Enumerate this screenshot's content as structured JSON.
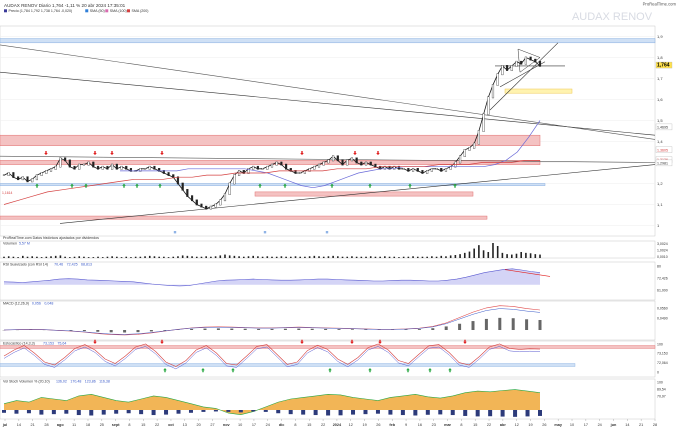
{
  "header": {
    "title": "AUDAX RENOV Diario  1,764  -1,11 % 20 abr 2024 17:35:01",
    "legend_items": [
      "Precio (1,784  1,792  1,738  1,764  -0,020)",
      "SMA (50)",
      "SMA (100)",
      "SMA (200)"
    ],
    "legend_colors": [
      "#3a3a9a",
      "#2f7fd8",
      "#d86bb0",
      "#d44040"
    ],
    "watermark": "AUDAX RENOV",
    "brand": "ProRealTime.com"
  },
  "colors": {
    "price": "#1a1a1a",
    "sma50": "#6a6ad8",
    "sma200": "#d44040",
    "resistance_zone": "#f4c2c2",
    "support_zone": "#cfe0f5",
    "last_price_bg": "#ffe14d",
    "up_arrow": "#2aa845",
    "down_arrow": "#e02020",
    "rsi_fill": "#b8b8f0",
    "macd_line": "#e04a4a",
    "volume_bar": "#222222",
    "vol_stoch_fill": "#f0a838",
    "vol_stoch_dark": "#2c3a7a"
  },
  "price_labels": {
    "last_price": "1,764",
    "level_a": "1,4695",
    "level_b": "1,3605",
    "level_c": "1,3136",
    "level_d": "1,2981",
    "level_left": "1,1614"
  },
  "footer_note": "ProRealTime.com  Datos históricos ajustados por dividendos",
  "panels": {
    "volume": {
      "label": "Volumen",
      "value": "5,57 M",
      "labels": [
        "3,0024",
        "1,0024",
        "0,0010"
      ]
    },
    "rsi": {
      "label": "RSI Suavizado (con RSI 14)",
      "values": [
        "70,46",
        "72,425",
        "68,813"
      ],
      "labels": [
        "80",
        "72,426",
        "61,000"
      ]
    },
    "macd": {
      "label": "MACD (12,26,9)",
      "values": [
        "0,056",
        "0,048"
      ],
      "labels": [
        "0,0560",
        "0,0490"
      ]
    },
    "stoch": {
      "label": "Estocástico (14,3,3)",
      "values": [
        "73,153",
        "75,64"
      ],
      "labels": [
        "100",
        "73,153",
        "72,064",
        "0"
      ]
    },
    "volstoch": {
      "label": "Vol Stoch Volumen % (20,10)",
      "values": [
        "136,02",
        "170,48",
        "123,86",
        "116,38"
      ],
      "labels": [
        "100",
        "89,54",
        "70,97"
      ]
    }
  },
  "chart_data": {
    "type": "line",
    "title": "AUDAX RENOV Diario",
    "y_ticks": [
      "1,9",
      "1,8",
      "1,7",
      "1,6",
      "1,5",
      "1,4",
      "1,3",
      "1,2",
      "1,1",
      "1"
    ],
    "ylim": [
      0.95,
      1.95
    ],
    "x_ticks": [
      "jul",
      "14",
      "21",
      "28",
      "ago",
      "11",
      "18",
      "25",
      "sept",
      "8",
      "15",
      "22",
      "oct",
      "13",
      "20",
      "27",
      "nov",
      "10",
      "17",
      "24",
      "dic",
      "8",
      "15",
      "22",
      "2024",
      "12",
      "19",
      "26",
      "feb",
      "9",
      "16",
      "23",
      "mar",
      "8",
      "15",
      "22",
      "abr",
      "12",
      "19",
      "26",
      "may",
      "10",
      "17",
      "24",
      "jun",
      "14",
      "21",
      "28"
    ],
    "series": [
      {
        "name": "Precio",
        "values": [
          1.24,
          1.25,
          1.23,
          1.22,
          1.23,
          1.21,
          1.22,
          1.24,
          1.25,
          1.26,
          1.27,
          1.28,
          1.32,
          1.31,
          1.28,
          1.27,
          1.29,
          1.29,
          1.3,
          1.28,
          1.27,
          1.28,
          1.27,
          1.29,
          1.27,
          1.28,
          1.27,
          1.26,
          1.26,
          1.27,
          1.27,
          1.28,
          1.27,
          1.26,
          1.25,
          1.24,
          1.23,
          1.2,
          1.17,
          1.14,
          1.12,
          1.1,
          1.09,
          1.08,
          1.09,
          1.1,
          1.12,
          1.15,
          1.2,
          1.24,
          1.26,
          1.25,
          1.27,
          1.28,
          1.27,
          1.27,
          1.28,
          1.29,
          1.3,
          1.29,
          1.27,
          1.26,
          1.25,
          1.25,
          1.26,
          1.27,
          1.28,
          1.29,
          1.3,
          1.31,
          1.33,
          1.31,
          1.29,
          1.31,
          1.32,
          1.3,
          1.29,
          1.3,
          1.29,
          1.28,
          1.27,
          1.28,
          1.27,
          1.28,
          1.27,
          1.27,
          1.26,
          1.27,
          1.26,
          1.25,
          1.26,
          1.27,
          1.27,
          1.26,
          1.27,
          1.28,
          1.3,
          1.33,
          1.36,
          1.37,
          1.39,
          1.45,
          1.53,
          1.61,
          1.67,
          1.72,
          1.76,
          1.74,
          1.76,
          1.78,
          1.77,
          1.8,
          1.79,
          1.78,
          1.76
        ]
      },
      {
        "name": "SMA (50)",
        "values": [
          1.26,
          1.26,
          1.26,
          1.26,
          1.26,
          1.26,
          1.27,
          1.27,
          1.27,
          1.27,
          1.27,
          1.27,
          1.26,
          1.25,
          1.23,
          1.21,
          1.19,
          1.18,
          1.19,
          1.21,
          1.23,
          1.25,
          1.26,
          1.27,
          1.27,
          1.28,
          1.28,
          1.28,
          1.28,
          1.28,
          1.28,
          1.28,
          1.28,
          1.29,
          1.31,
          1.35,
          1.42,
          1.5
        ]
      },
      {
        "name": "SMA (200)",
        "values": [
          1.1,
          1.12,
          1.14,
          1.16,
          1.17,
          1.18,
          1.19,
          1.2,
          1.21,
          1.22,
          1.22,
          1.22,
          1.23,
          1.23,
          1.24,
          1.24,
          1.25,
          1.25,
          1.25,
          1.26,
          1.26,
          1.26,
          1.26,
          1.27,
          1.27,
          1.27,
          1.28,
          1.28,
          1.28,
          1.28,
          1.29,
          1.29,
          1.29,
          1.3,
          1.3,
          1.3,
          1.31,
          1.31
        ]
      }
    ],
    "zones": [
      {
        "kind": "resistance",
        "from": 1.38,
        "to": 1.43
      },
      {
        "kind": "resistance",
        "from": 1.29,
        "to": 1.31
      },
      {
        "kind": "support",
        "from": 1.19,
        "to": 1.2
      },
      {
        "kind": "support",
        "from": 1.87,
        "to": 1.89
      },
      {
        "kind": "resistance",
        "from": 1.14,
        "to": 1.16
      },
      {
        "kind": "resistance",
        "from": 1.03,
        "to": 1.045
      }
    ],
    "volume": [
      3,
      4,
      3,
      2,
      5,
      3,
      4,
      3,
      2,
      3,
      4,
      5,
      6,
      3,
      2,
      3,
      4,
      3,
      2,
      2,
      3,
      2,
      3,
      4,
      3,
      2,
      3,
      2,
      3,
      3,
      4,
      5,
      4,
      3,
      3,
      2,
      3,
      4,
      6,
      5,
      4,
      3,
      3,
      4,
      3,
      4,
      6,
      8,
      6,
      5,
      4,
      3,
      4,
      5,
      4,
      3,
      4,
      3,
      3,
      4,
      3,
      3,
      4,
      3,
      3,
      4,
      5,
      4,
      3,
      4,
      5,
      4,
      3,
      3,
      4,
      3,
      3,
      3,
      4,
      3,
      3,
      4,
      3,
      3,
      2,
      3,
      3,
      4,
      3,
      3,
      3,
      4,
      3,
      5,
      4,
      6,
      7,
      9,
      12,
      15,
      22,
      30,
      18,
      14,
      35,
      28,
      12,
      9,
      8,
      10,
      14,
      12,
      11,
      9,
      8
    ],
    "rsi": [
      48,
      47,
      46,
      48,
      50,
      52,
      55,
      56,
      55,
      53,
      52,
      51,
      50,
      49,
      48,
      45,
      42,
      40,
      38,
      37,
      38,
      42,
      46,
      50,
      52,
      53,
      54,
      55,
      54,
      53,
      52,
      52,
      53,
      54,
      55,
      55,
      54,
      53,
      52,
      51,
      50,
      50,
      51,
      52,
      52,
      51,
      50,
      50,
      52,
      55,
      60,
      66,
      72,
      76,
      80,
      82,
      79,
      75,
      72
    ],
    "macd": [
      0,
      0.001,
      0.002,
      0.001,
      -0.001,
      -0.003,
      -0.006,
      -0.01,
      -0.013,
      -0.014,
      -0.012,
      -0.008,
      -0.003,
      0.002,
      0.006,
      0.008,
      0.009,
      0.008,
      0.007,
      0.006,
      0.006,
      0.007,
      0.008,
      0.007,
      0.006,
      0.005,
      0.004,
      0.003,
      0.002,
      0.002,
      0.003,
      0.005,
      0.01,
      0.02,
      0.035,
      0.05,
      0.062,
      0.068,
      0.066,
      0.06,
      0.056
    ],
    "stoch": [
      50,
      70,
      85,
      60,
      30,
      20,
      45,
      75,
      88,
      70,
      40,
      25,
      50,
      80,
      90,
      65,
      30,
      15,
      35,
      70,
      85,
      60,
      25,
      20,
      50,
      82,
      88,
      55,
      22,
      30,
      68,
      86,
      72,
      40,
      22,
      45,
      78,
      90,
      70,
      35,
      25,
      55,
      84,
      88,
      62,
      28,
      20,
      48,
      80,
      90,
      75,
      72,
      74,
      73
    ],
    "vol_stoch": [
      20,
      30,
      25,
      40,
      35,
      30,
      45,
      50,
      40,
      30,
      25,
      35,
      45,
      40,
      30,
      20,
      10,
      5,
      -10,
      -15,
      -5,
      10,
      25,
      35,
      40,
      45,
      50,
      48,
      40,
      35,
      30,
      40,
      45,
      50,
      42,
      38,
      45,
      55,
      60,
      58,
      62,
      65,
      60,
      55
    ]
  }
}
